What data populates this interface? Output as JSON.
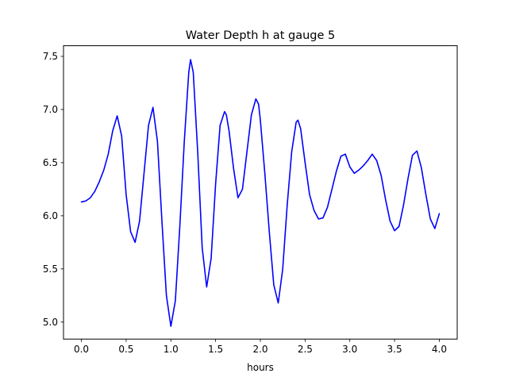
{
  "chart_data": {
    "type": "line",
    "title": "Water Depth h at gauge 5",
    "xlabel": "hours",
    "ylabel": "",
    "xlim": [
      -0.2,
      4.2
    ],
    "ylim": [
      4.84,
      7.6
    ],
    "x_ticks": [
      0.0,
      0.5,
      1.0,
      1.5,
      2.0,
      2.5,
      3.0,
      3.5,
      4.0
    ],
    "x_tick_labels": [
      "0.0",
      "0.5",
      "1.0",
      "1.5",
      "2.0",
      "2.5",
      "3.0",
      "3.5",
      "4.0"
    ],
    "y_ticks": [
      5.0,
      5.5,
      6.0,
      6.5,
      7.0,
      7.5
    ],
    "y_tick_labels": [
      "5.0",
      "5.5",
      "6.0",
      "6.5",
      "7.0",
      "7.5"
    ],
    "grid": false,
    "legend": "none",
    "series": [
      {
        "color": "#0000ff",
        "x": [
          0.0,
          0.05,
          0.1,
          0.15,
          0.2,
          0.25,
          0.3,
          0.35,
          0.4,
          0.45,
          0.5,
          0.55,
          0.6,
          0.65,
          0.7,
          0.75,
          0.8,
          0.85,
          0.9,
          0.95,
          1.0,
          1.05,
          1.1,
          1.15,
          1.2,
          1.22,
          1.25,
          1.3,
          1.35,
          1.4,
          1.45,
          1.5,
          1.55,
          1.6,
          1.62,
          1.65,
          1.7,
          1.75,
          1.8,
          1.85,
          1.9,
          1.95,
          1.98,
          2.0,
          2.05,
          2.1,
          2.15,
          2.2,
          2.25,
          2.3,
          2.35,
          2.4,
          2.42,
          2.45,
          2.5,
          2.55,
          2.6,
          2.65,
          2.7,
          2.75,
          2.8,
          2.85,
          2.9,
          2.95,
          3.0,
          3.05,
          3.1,
          3.15,
          3.2,
          3.25,
          3.3,
          3.35,
          3.4,
          3.45,
          3.5,
          3.55,
          3.6,
          3.65,
          3.7,
          3.75,
          3.8,
          3.85,
          3.9,
          3.95,
          4.0
        ],
        "y": [
          6.13,
          6.14,
          6.17,
          6.23,
          6.32,
          6.43,
          6.58,
          6.8,
          6.94,
          6.75,
          6.2,
          5.85,
          5.75,
          5.95,
          6.4,
          6.85,
          7.02,
          6.7,
          5.95,
          5.25,
          4.96,
          5.2,
          5.9,
          6.7,
          7.35,
          7.47,
          7.35,
          6.6,
          5.7,
          5.33,
          5.6,
          6.3,
          6.85,
          6.98,
          6.95,
          6.8,
          6.45,
          6.17,
          6.25,
          6.6,
          6.95,
          7.1,
          7.05,
          6.9,
          6.4,
          5.85,
          5.35,
          5.18,
          5.5,
          6.1,
          6.6,
          6.88,
          6.9,
          6.82,
          6.5,
          6.2,
          6.05,
          5.97,
          5.98,
          6.08,
          6.25,
          6.42,
          6.56,
          6.58,
          6.46,
          6.4,
          6.43,
          6.47,
          6.52,
          6.58,
          6.52,
          6.38,
          6.15,
          5.95,
          5.86,
          5.9,
          6.1,
          6.35,
          6.57,
          6.61,
          6.45,
          6.2,
          5.97,
          5.88,
          6.02
        ]
      }
    ]
  }
}
